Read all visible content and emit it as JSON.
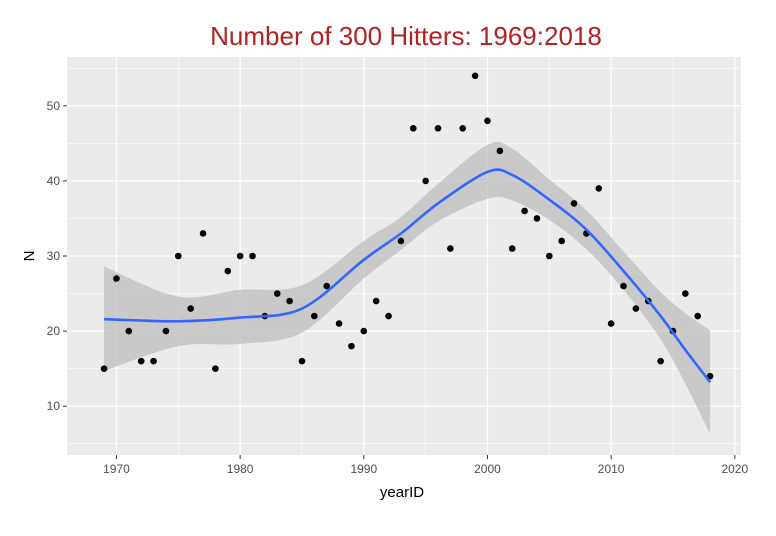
{
  "chart_data": {
    "type": "scatter",
    "title": "Number of 300 Hitters:  1969:2018",
    "xlabel": "yearID",
    "ylabel": "N",
    "xlim": [
      1966,
      2020.5
    ],
    "ylim": [
      3.5,
      56.5
    ],
    "xticks": [
      1970,
      1980,
      1990,
      2000,
      2010,
      2020
    ],
    "xtick_labels": [
      "1970",
      "1980",
      "1990",
      "2000",
      "2010",
      "2020"
    ],
    "yticks": [
      10,
      20,
      30,
      40,
      50
    ],
    "ytick_labels": [
      "10",
      "20",
      "30",
      "40",
      "50"
    ],
    "grid": true,
    "legend": "none",
    "colors": {
      "panel": "#ebebeb",
      "grid": "#ffffff",
      "point": "#000000",
      "smooth_line": "#3366ff",
      "ribbon": "#bdbdbd",
      "title": "#b22222"
    },
    "points": {
      "x": [
        1969,
        1970,
        1971,
        1972,
        1973,
        1974,
        1975,
        1976,
        1977,
        1978,
        1979,
        1980,
        1981,
        1982,
        1983,
        1984,
        1985,
        1986,
        1987,
        1988,
        1989,
        1990,
        1991,
        1992,
        1993,
        1994,
        1995,
        1996,
        1997,
        1998,
        1999,
        2000,
        2001,
        2002,
        2003,
        2004,
        2005,
        2006,
        2007,
        2008,
        2009,
        2010,
        2011,
        2012,
        2013,
        2014,
        2015,
        2016,
        2017,
        2018
      ],
      "y": [
        15,
        27,
        20,
        16,
        16,
        20,
        30,
        23,
        33,
        15,
        28,
        30,
        30,
        22,
        25,
        24,
        16,
        22,
        26,
        21,
        18,
        20,
        24,
        22,
        32,
        47,
        40,
        47,
        31,
        47,
        54,
        48,
        44,
        31,
        36,
        35,
        30,
        32,
        37,
        33,
        39,
        21,
        26,
        23,
        24,
        16,
        20,
        25,
        22,
        14
      ]
    },
    "smooth": {
      "method": "loess",
      "x": [
        1969,
        1975,
        1980,
        1985,
        1990,
        1993,
        1996,
        2000,
        2002,
        2005,
        2008,
        2011,
        2014,
        2016,
        2018
      ],
      "y": [
        21.6,
        21.3,
        21.8,
        23.0,
        29.5,
        33.0,
        37.0,
        41.2,
        40.8,
        37.5,
        33.5,
        28.0,
        22.0,
        17.5,
        13.2
      ],
      "lower": [
        14.7,
        18.0,
        18.3,
        19.8,
        27.0,
        30.8,
        34.6,
        37.6,
        37.4,
        34.8,
        30.9,
        25.5,
        18.9,
        13.0,
        6.3
      ],
      "upper": [
        28.6,
        24.6,
        25.5,
        26.1,
        32.0,
        35.2,
        39.6,
        44.8,
        44.3,
        40.2,
        36.1,
        30.6,
        25.2,
        22.4,
        20.1
      ]
    }
  }
}
